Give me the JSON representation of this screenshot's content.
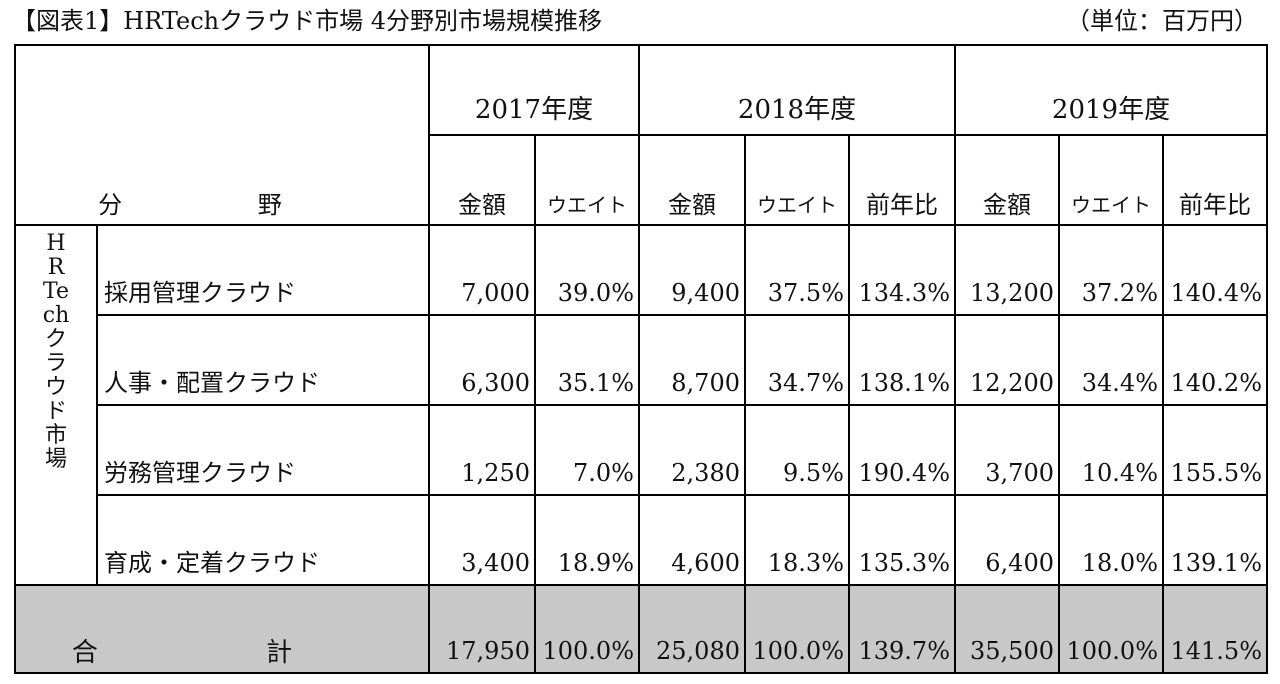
{
  "header": {
    "title": "【図表1】HRTechクラウド市場 4分野別市場規模推移",
    "unit": "（単位：百万円）"
  },
  "table": {
    "field_header": "分 野",
    "group_label": "HRTechクラウド市場",
    "years": [
      {
        "label": "2017年度",
        "subcols": [
          "金額",
          "ウエイト"
        ]
      },
      {
        "label": "2018年度",
        "subcols": [
          "金額",
          "ウエイト",
          "前年比"
        ]
      },
      {
        "label": "2019年度",
        "subcols": [
          "金額",
          "ウエイト",
          "前年比"
        ]
      }
    ],
    "rows": [
      {
        "name": "採用管理クラウド",
        "cells": [
          "7,000",
          "39.0%",
          "9,400",
          "37.5%",
          "134.3%",
          "13,200",
          "37.2%",
          "140.4%"
        ]
      },
      {
        "name": "人事・配置クラウド",
        "cells": [
          "6,300",
          "35.1%",
          "8,700",
          "34.7%",
          "138.1%",
          "12,200",
          "34.4%",
          "140.2%"
        ]
      },
      {
        "name": "労務管理クラウド",
        "cells": [
          "1,250",
          "7.0%",
          "2,380",
          "9.5%",
          "190.4%",
          "3,700",
          "10.4%",
          "155.5%"
        ]
      },
      {
        "name": "育成・定着クラウド",
        "cells": [
          "3,400",
          "18.9%",
          "4,600",
          "18.3%",
          "135.3%",
          "6,400",
          "18.0%",
          "139.1%"
        ]
      }
    ],
    "total": {
      "name": "合 計",
      "cells": [
        "17,950",
        "100.0%",
        "25,080",
        "100.0%",
        "139.7%",
        "35,500",
        "100.0%",
        "141.5%"
      ]
    }
  },
  "chart_data": {
    "type": "table",
    "title": "【図表1】HRTechクラウド市場 4分野別市場規模推移",
    "unit": "（単位：百万円）",
    "columns": [
      "2017年度 金額",
      "2017年度 ウエイト",
      "2018年度 金額",
      "2018年度 ウエイト",
      "2018年度 前年比",
      "2019年度 金額",
      "2019年度 ウエイト",
      "2019年度 前年比"
    ],
    "categories": [
      "採用管理クラウド",
      "人事・配置クラウド",
      "労務管理クラウド",
      "育成・定着クラウド",
      "合 計"
    ],
    "series": [
      {
        "name": "2017年度 金額",
        "values": [
          7000,
          6300,
          1250,
          3400,
          17950
        ]
      },
      {
        "name": "2017年度 ウエイト",
        "values": [
          39.0,
          35.1,
          7.0,
          18.9,
          100.0
        ]
      },
      {
        "name": "2018年度 金額",
        "values": [
          9400,
          8700,
          2380,
          4600,
          25080
        ]
      },
      {
        "name": "2018年度 ウエイト",
        "values": [
          37.5,
          34.7,
          9.5,
          18.3,
          100.0
        ]
      },
      {
        "name": "2018年度 前年比",
        "values": [
          134.3,
          138.1,
          190.4,
          135.3,
          139.7
        ]
      },
      {
        "name": "2019年度 金額",
        "values": [
          13200,
          12200,
          3700,
          6400,
          35500
        ]
      },
      {
        "name": "2019年度 ウエイト",
        "values": [
          37.2,
          34.4,
          10.4,
          18.0,
          100.0
        ]
      },
      {
        "name": "2019年度 前年比",
        "values": [
          140.4,
          140.2,
          155.5,
          139.1,
          141.5
        ]
      }
    ]
  }
}
